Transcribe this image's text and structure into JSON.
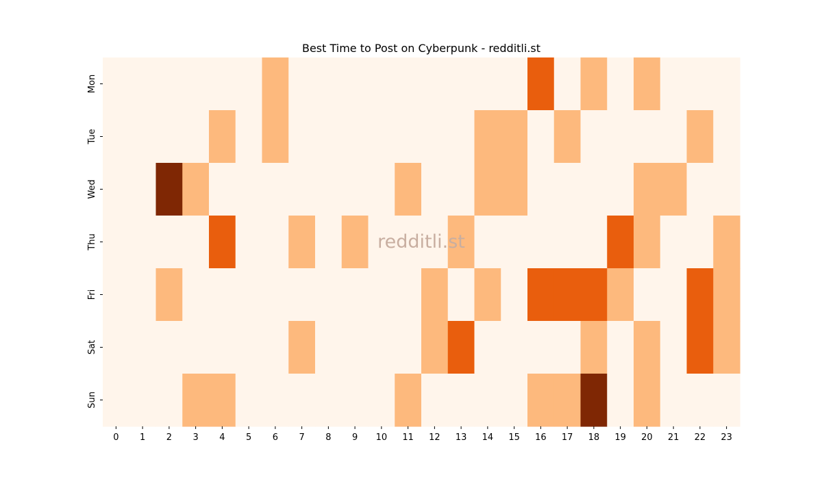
{
  "chart_data": {
    "type": "heatmap",
    "title": "Best Time to Post on Cyberpunk - redditli.st",
    "watermark": "redditli.st",
    "xlabel": "",
    "ylabel": "",
    "x": [
      "0",
      "1",
      "2",
      "3",
      "4",
      "5",
      "6",
      "7",
      "8",
      "9",
      "10",
      "11",
      "12",
      "13",
      "14",
      "15",
      "16",
      "17",
      "18",
      "19",
      "20",
      "21",
      "22",
      "23"
    ],
    "y": [
      "Mon",
      "Tue",
      "Wed",
      "Thu",
      "Fri",
      "Sat",
      "Sun"
    ],
    "colormap": "Oranges",
    "level_colors": [
      "#fff5eb",
      "#fdb97d",
      "#e95e0d",
      "#7f2704"
    ],
    "values": [
      [
        0,
        0,
        0,
        0,
        0,
        0,
        1,
        0,
        0,
        0,
        0,
        0,
        0,
        0,
        0,
        0,
        2,
        0,
        1,
        0,
        1,
        0,
        0,
        0
      ],
      [
        0,
        0,
        0,
        0,
        1,
        0,
        1,
        0,
        0,
        0,
        0,
        0,
        0,
        0,
        1,
        1,
        0,
        1,
        0,
        0,
        0,
        0,
        1,
        0
      ],
      [
        0,
        0,
        3,
        1,
        0,
        0,
        0,
        0,
        0,
        0,
        0,
        1,
        0,
        0,
        1,
        1,
        0,
        0,
        0,
        0,
        1,
        1,
        0,
        0
      ],
      [
        0,
        0,
        0,
        0,
        2,
        0,
        0,
        1,
        0,
        1,
        0,
        0,
        0,
        1,
        0,
        0,
        0,
        0,
        0,
        2,
        1,
        0,
        0,
        1
      ],
      [
        0,
        0,
        1,
        0,
        0,
        0,
        0,
        0,
        0,
        0,
        0,
        0,
        1,
        0,
        1,
        0,
        2,
        2,
        2,
        1,
        0,
        0,
        2,
        1
      ],
      [
        0,
        0,
        0,
        0,
        0,
        0,
        0,
        1,
        0,
        0,
        0,
        0,
        1,
        2,
        0,
        0,
        0,
        0,
        1,
        0,
        1,
        0,
        2,
        1
      ],
      [
        0,
        0,
        0,
        1,
        1,
        0,
        0,
        0,
        0,
        0,
        0,
        1,
        0,
        0,
        0,
        0,
        1,
        1,
        3,
        0,
        1,
        0,
        0,
        0
      ]
    ]
  }
}
